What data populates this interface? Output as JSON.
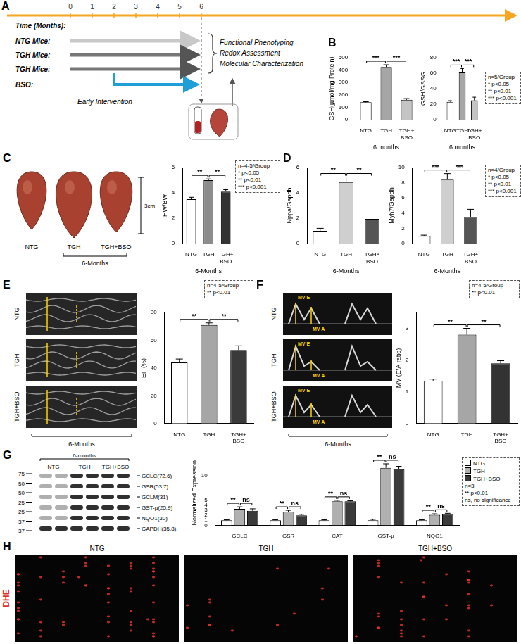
{
  "chart_data": [
    {
      "type": "bar",
      "categories": [
        "NTG",
        "TGH",
        "TGH+BSO"
      ],
      "values": [
        140,
        425,
        160
      ],
      "errors": [
        5,
        18,
        10
      ],
      "colors": [
        "#ffffff",
        "#a6a6a6",
        "#c4c4c4"
      ],
      "ylabel": "GSH(µmol/mg Protein)",
      "xlabel": "6 months",
      "ylim": [
        0,
        500
      ],
      "yticks": [
        0,
        100,
        200,
        300,
        400,
        500
      ],
      "grid": false,
      "significance": [
        {
          "from": 0,
          "to": 1,
          "label": "***"
        },
        {
          "from": 1,
          "to": 2,
          "label": "***"
        }
      ]
    },
    {
      "type": "bar",
      "categories": [
        "NTG",
        "TGH",
        "TGH+BSO"
      ],
      "values": [
        23,
        61,
        25
      ],
      "errors": [
        1.5,
        5,
        4
      ],
      "colors": [
        "#ffffff",
        "#a6a6a6",
        "#c4c4c4"
      ],
      "ylabel": "GSH/GSSG",
      "xlabel": "6 months",
      "ylim": [
        0,
        80
      ],
      "yticks": [
        0,
        20,
        40,
        60,
        80
      ],
      "grid": false,
      "significance": [
        {
          "from": 0,
          "to": 1,
          "label": "***"
        },
        {
          "from": 1,
          "to": 2,
          "label": "***"
        }
      ],
      "annotations": [
        "n=5/Group",
        "* p<0.05",
        "** p<0.01",
        "*** p<0.001"
      ]
    },
    {
      "type": "bar",
      "categories": [
        "NTG",
        "TGH",
        "TGH+BSO"
      ],
      "values": [
        3.5,
        5.0,
        4.1
      ],
      "errors": [
        0.15,
        0.1,
        0.15
      ],
      "colors": [
        "#ffffff",
        "#8c8c8c",
        "#333333"
      ],
      "ylabel": "HW/BW",
      "xlabel": "6-Months",
      "ylim": [
        0,
        6
      ],
      "yticks": [
        0,
        2,
        4,
        6
      ],
      "grid": false,
      "significance": [
        {
          "from": 0,
          "to": 1,
          "label": "**"
        },
        {
          "from": 1,
          "to": 2,
          "label": "**"
        }
      ],
      "annotations": [
        "n=4-5/Group",
        "* p<0.05",
        "** p<0.01",
        "*** p<0.001"
      ]
    },
    {
      "type": "bar",
      "categories": [
        "NTG",
        "TGH",
        "TGH+BSO"
      ],
      "values": [
        1.0,
        4.85,
        1.95
      ],
      "errors": [
        0.2,
        0.4,
        0.3
      ],
      "colors": [
        "#ffffff",
        "#cfcfcf",
        "#555555"
      ],
      "ylabel": "Nppa/Gapdh",
      "xlabel": "6-Months",
      "ylim": [
        0,
        6
      ],
      "yticks": [
        0,
        2,
        4,
        6
      ],
      "grid": false,
      "significance": [
        {
          "from": 0,
          "to": 1,
          "label": "**"
        },
        {
          "from": 1,
          "to": 2,
          "label": "**"
        }
      ]
    },
    {
      "type": "bar",
      "categories": [
        "NTG",
        "TGH",
        "TGH+BSO"
      ],
      "values": [
        1.0,
        8.4,
        3.5
      ],
      "errors": [
        0.1,
        0.8,
        1.0
      ],
      "colors": [
        "#ffffff",
        "#cfcfcf",
        "#555555"
      ],
      "ylabel": "Myh7/Gapdh",
      "xlabel": "6-Months",
      "ylim": [
        0,
        10
      ],
      "yticks": [
        0,
        2,
        4,
        6,
        8,
        10
      ],
      "grid": false,
      "significance": [
        {
          "from": 0,
          "to": 1,
          "label": "***"
        },
        {
          "from": 1,
          "to": 2,
          "label": "***"
        }
      ],
      "annotations": [
        "n=4/Group",
        "* p<0.05",
        "** p<0.01",
        "*** p<0.001"
      ]
    },
    {
      "type": "bar",
      "categories": [
        "NTG",
        "TGH",
        "TGH+BSO"
      ],
      "values": [
        44,
        71,
        53
      ],
      "errors": [
        2.5,
        1.5,
        3
      ],
      "colors": [
        "#ffffff",
        "#a6a6a6",
        "#3a3a3a"
      ],
      "ylabel": "EF (%)",
      "ylim": [
        0,
        80
      ],
      "yticks": [
        0,
        20,
        40,
        60,
        80
      ],
      "grid": false,
      "significance": [
        {
          "from": 0,
          "to": 1,
          "label": "**"
        },
        {
          "from": 1,
          "to": 2,
          "label": "**"
        }
      ],
      "annotations": [
        "n=4-5/Group",
        "** p<0.01"
      ]
    },
    {
      "type": "bar",
      "categories": [
        "NTG",
        "TGH",
        "TGH+BSO"
      ],
      "values": [
        1.35,
        2.8,
        1.9
      ],
      "errors": [
        0.05,
        0.2,
        0.08
      ],
      "colors": [
        "#ffffff",
        "#a6a6a6",
        "#333333"
      ],
      "ylabel": "MV (E/A ratio)",
      "ylim": [
        0,
        3.5
      ],
      "yticks": [
        0,
        1,
        2,
        3
      ],
      "grid": false,
      "significance": [
        {
          "from": 0,
          "to": 1,
          "label": "**"
        },
        {
          "from": 1,
          "to": 2,
          "label": "**"
        }
      ],
      "annotations": [
        "n=4-5/Group",
        "** p<0.01"
      ]
    },
    {
      "type": "bar",
      "categories": [
        "GCLC",
        "GSR",
        "CAT",
        "GST-µ",
        "NQO1"
      ],
      "series": [
        {
          "name": "NTG",
          "color": "#ffffff",
          "values": [
            1,
            1,
            1,
            1,
            1
          ],
          "errors": [
            0.1,
            0.1,
            0.1,
            0.2,
            0.1
          ]
        },
        {
          "name": "TGH",
          "color": "#b0b0b0",
          "values": [
            3.3,
            2.7,
            4.8,
            11.5,
            2.1
          ],
          "errors": [
            0.4,
            0.3,
            0.2,
            0.8,
            0.2
          ]
        },
        {
          "name": "TGH+BSO",
          "color": "#3a3a3a",
          "values": [
            2.9,
            2.0,
            4.8,
            11.2,
            2.25
          ],
          "errors": [
            0.4,
            0.2,
            0.1,
            0.6,
            0.15
          ]
        }
      ],
      "ylabel": "Normalized Expression",
      "ylim": [
        0,
        13
      ],
      "yticks": [
        0,
        1,
        2,
        3,
        4,
        5,
        10
      ],
      "grid": false,
      "legend": "right",
      "significance": [
        {
          "group": 0,
          "from": 0,
          "to": 1,
          "label": "**"
        },
        {
          "group": 0,
          "from": 1,
          "to": 2,
          "label": "ns"
        },
        {
          "group": 1,
          "from": 0,
          "to": 1,
          "label": "**"
        },
        {
          "group": 1,
          "from": 1,
          "to": 2,
          "label": "ns"
        },
        {
          "group": 2,
          "from": 0,
          "to": 1,
          "label": "**"
        },
        {
          "group": 2,
          "from": 1,
          "to": 2,
          "label": "ns"
        },
        {
          "group": 3,
          "from": 0,
          "to": 1,
          "label": "**"
        },
        {
          "group": 3,
          "from": 1,
          "to": 2,
          "label": "ns"
        },
        {
          "group": 4,
          "from": 0,
          "to": 1,
          "label": "**"
        },
        {
          "group": 4,
          "from": 1,
          "to": 2,
          "label": "ns"
        }
      ],
      "annotations": [
        "n=3",
        "** p<0.01",
        "ns, no significance"
      ]
    }
  ],
  "figure": {
    "panel_labels": [
      "A",
      "B",
      "C",
      "D",
      "E",
      "F",
      "G",
      "H"
    ],
    "timeline": {
      "axis_label": "Time (Months):",
      "ticks": [
        0,
        1,
        2,
        3,
        4,
        5,
        6
      ],
      "rows": [
        {
          "label": "NTG Mice:",
          "start": 0,
          "end": 6
        },
        {
          "label": "TGH Mice:",
          "start": 0,
          "end": 6
        },
        {
          "label": "TGH Mice:",
          "start": 0,
          "end": 6
        },
        {
          "label": "BSO:",
          "start": 2,
          "end": 6
        }
      ],
      "outcomes": [
        "Functional Phenotyping",
        "Redox Assessment",
        "Molecular Characterization"
      ],
      "note": "Early Intervention"
    },
    "hearts": {
      "labels": [
        "NTG",
        "TGH",
        "TGH+BSO"
      ],
      "caption": "6-Months",
      "scale": "3cm"
    },
    "mmode": {
      "labels": [
        "NTG",
        "TGH",
        "TGH+BSO"
      ],
      "caption": "6-Months"
    },
    "doppler": {
      "labels": [
        "NTG",
        "TGH",
        "TGH+BSO"
      ],
      "marks": [
        "MV E",
        "MV A"
      ],
      "caption": "6-Months"
    },
    "blot": {
      "groups": [
        "NTG",
        "TGH",
        "TGH+BSO"
      ],
      "caption": "6-months",
      "bands": [
        "GCLC(72.6)",
        "GSR(53.7)",
        "GCLM(31)",
        "GST-µ(25.9)",
        "NQO1(30)",
        "GAPDH(35.8)"
      ],
      "markers": [
        75,
        50,
        50,
        25,
        25,
        37,
        37
      ]
    },
    "dhe": {
      "labels": [
        "NTG",
        "TGH",
        "TGH+BSO"
      ],
      "stain": "DHE"
    }
  }
}
